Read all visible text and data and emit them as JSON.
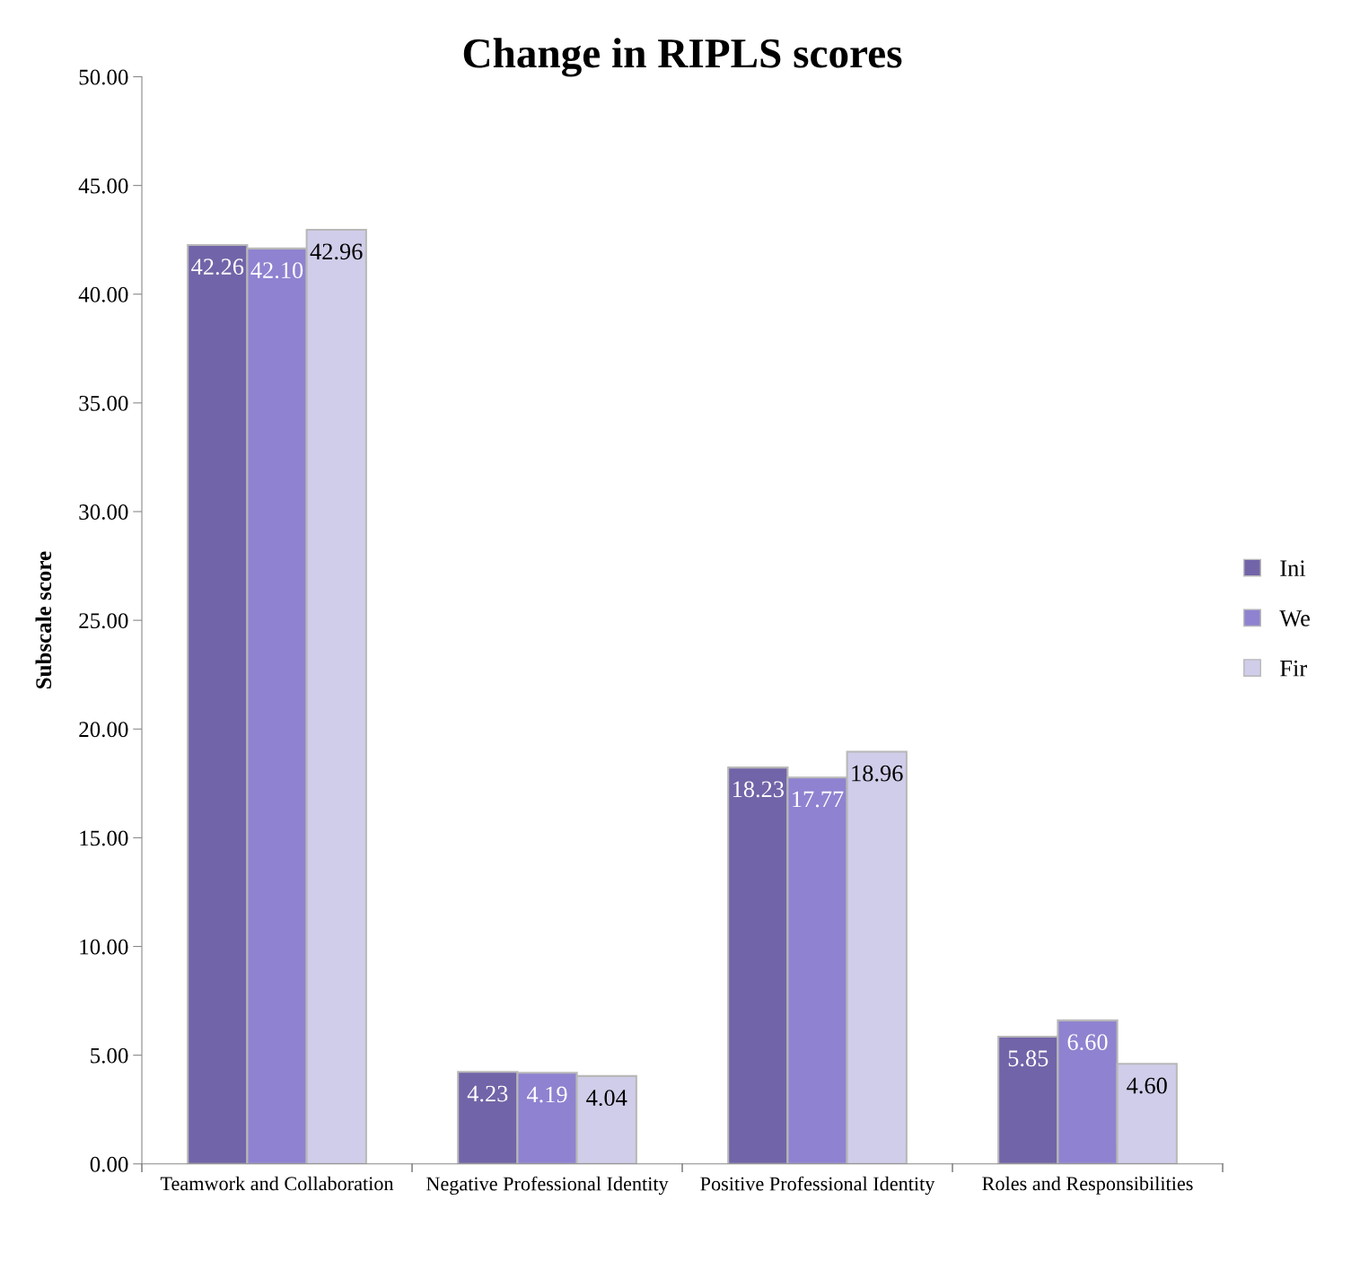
{
  "chart_data": {
    "type": "bar",
    "title": "Change in RIPLS scores",
    "ylabel": "Subscale score",
    "categories": [
      "Teamwork and Collaboration",
      "Negative Professional Identity",
      "Positive Professional Identity",
      "Roles and Responsibilities"
    ],
    "series": [
      {
        "name": "Ini",
        "color": "#7264a8",
        "values": [
          42.26,
          4.23,
          18.23,
          5.85
        ],
        "value_labels": [
          "42.26",
          "4.23",
          "18.23",
          "5.85"
        ]
      },
      {
        "name": "We",
        "color": "#8f82d0",
        "values": [
          42.1,
          4.19,
          17.77,
          6.6
        ],
        "value_labels": [
          "42.10",
          "4.19",
          "17.77",
          "6.60"
        ]
      },
      {
        "name": "Fir",
        "color": "#d0cdea",
        "values": [
          42.96,
          4.04,
          18.96,
          4.6
        ],
        "value_labels": [
          "42.96",
          "4.04",
          "18.96",
          "4.60"
        ]
      }
    ],
    "ylim": [
      0,
      50
    ],
    "yticks": [
      {
        "value": 0,
        "label": "0.00"
      },
      {
        "value": 5,
        "label": "5.00"
      },
      {
        "value": 10,
        "label": "10.00"
      },
      {
        "value": 15,
        "label": "15.00"
      },
      {
        "value": 20,
        "label": "20.00"
      },
      {
        "value": 25,
        "label": "25.00"
      },
      {
        "value": 30,
        "label": "30.00"
      },
      {
        "value": 35,
        "label": "35.00"
      },
      {
        "value": 40,
        "label": "40.00"
      },
      {
        "value": 45,
        "label": "45.00"
      },
      {
        "value": 50,
        "label": "50.00"
      }
    ],
    "grid": false,
    "legend": "right"
  }
}
